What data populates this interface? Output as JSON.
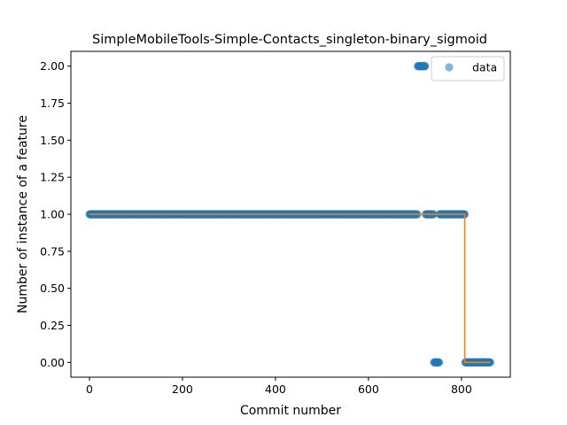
{
  "chart_data": {
    "type": "scatter",
    "title": "SimpleMobileTools-Simple-Contacts_singleton-binary_sigmoid",
    "xlabel": "Commit number",
    "ylabel": "Number of instance of a feature",
    "xlim": [
      -40,
      905
    ],
    "ylim": [
      -0.1,
      2.1
    ],
    "xticks": [
      0,
      200,
      400,
      600,
      800
    ],
    "xtick_labels": [
      "0",
      "200",
      "400",
      "600",
      "800"
    ],
    "yticks": [
      0.0,
      0.25,
      0.5,
      0.75,
      1.0,
      1.25,
      1.5,
      1.75,
      2.0
    ],
    "ytick_labels": [
      "0.00",
      "0.25",
      "0.50",
      "0.75",
      "1.00",
      "1.25",
      "1.50",
      "1.75",
      "2.00"
    ],
    "grid": false,
    "legend": {
      "position": "top-right",
      "entries": [
        "data"
      ]
    },
    "colors": {
      "data": "#1f77b4",
      "fit": "#ff7f0e"
    },
    "series": [
      {
        "name": "data",
        "kind": "scatter",
        "segments": [
          {
            "x_start": 0,
            "x_end": 705,
            "y": 1
          },
          {
            "x_start": 706,
            "x_end": 722,
            "y": 2
          },
          {
            "x_start": 723,
            "x_end": 740,
            "y": 1
          },
          {
            "x_start": 741,
            "x_end": 752,
            "y": 0
          },
          {
            "x_start": 753,
            "x_end": 807,
            "y": 1
          },
          {
            "x_start": 808,
            "x_end": 862,
            "y": 0
          }
        ]
      },
      {
        "kind": "line",
        "points": [
          [
            0,
            1
          ],
          [
            807,
            1
          ],
          [
            807,
            0
          ],
          [
            862,
            0
          ]
        ]
      }
    ]
  }
}
